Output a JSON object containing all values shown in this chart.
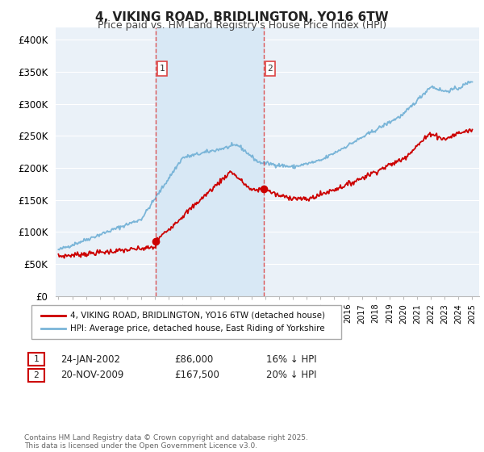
{
  "title": "4, VIKING ROAD, BRIDLINGTON, YO16 6TW",
  "subtitle": "Price paid vs. HM Land Registry's House Price Index (HPI)",
  "ylim": [
    0,
    420000
  ],
  "yticks": [
    0,
    50000,
    100000,
    150000,
    200000,
    250000,
    300000,
    350000,
    400000
  ],
  "ytick_labels": [
    "£0",
    "£50K",
    "£100K",
    "£150K",
    "£200K",
    "£250K",
    "£300K",
    "£350K",
    "£400K"
  ],
  "hpi_color": "#7ab5d8",
  "price_color": "#cc0000",
  "vline_color": "#dd4444",
  "vline1_x": 2002.07,
  "vline2_x": 2009.9,
  "marker1_x": 2002.07,
  "marker1_y": 86000,
  "marker2_x": 2009.9,
  "marker2_y": 167500,
  "label1_num": "1",
  "label2_num": "2",
  "shade_color": "#d8e8f5",
  "transaction1_date": "24-JAN-2002",
  "transaction1_price": "£86,000",
  "transaction1_hpi": "16% ↓ HPI",
  "transaction2_date": "20-NOV-2009",
  "transaction2_price": "£167,500",
  "transaction2_hpi": "20% ↓ HPI",
  "legend_line1": "4, VIKING ROAD, BRIDLINGTON, YO16 6TW (detached house)",
  "legend_line2": "HPI: Average price, detached house, East Riding of Yorkshire",
  "footer": "Contains HM Land Registry data © Crown copyright and database right 2025.\nThis data is licensed under the Open Government Licence v3.0.",
  "plot_bg_color": "#eaf1f8",
  "fig_bg_color": "#ffffff",
  "grid_color": "#ffffff",
  "xlim_left": 1994.8,
  "xlim_right": 2025.5
}
